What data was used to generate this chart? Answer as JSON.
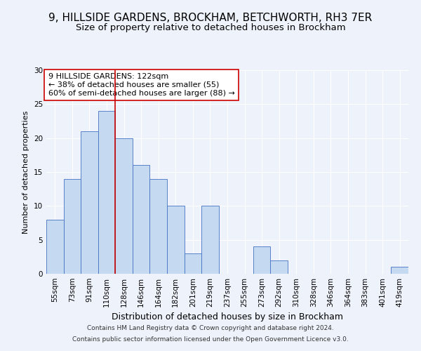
{
  "title1": "9, HILLSIDE GARDENS, BROCKHAM, BETCHWORTH, RH3 7ER",
  "title2": "Size of property relative to detached houses in Brockham",
  "xlabel": "Distribution of detached houses by size in Brockham",
  "ylabel": "Number of detached properties",
  "categories": [
    "55sqm",
    "73sqm",
    "91sqm",
    "110sqm",
    "128sqm",
    "146sqm",
    "164sqm",
    "182sqm",
    "201sqm",
    "219sqm",
    "237sqm",
    "255sqm",
    "273sqm",
    "292sqm",
    "310sqm",
    "328sqm",
    "346sqm",
    "364sqm",
    "383sqm",
    "401sqm",
    "419sqm"
  ],
  "values": [
    8,
    14,
    21,
    24,
    20,
    16,
    14,
    10,
    3,
    10,
    0,
    0,
    4,
    2,
    0,
    0,
    0,
    0,
    0,
    0,
    1
  ],
  "bar_color": "#c5d9f1",
  "bar_edge_color": "#4472c4",
  "vline_x": 3.5,
  "vline_color": "#cc0000",
  "annotation_text": "9 HILLSIDE GARDENS: 122sqm\n← 38% of detached houses are smaller (55)\n60% of semi-detached houses are larger (88) →",
  "annotation_box_color": "#ffffff",
  "annotation_box_edge": "#cc0000",
  "ylim": [
    0,
    30
  ],
  "yticks": [
    0,
    5,
    10,
    15,
    20,
    25,
    30
  ],
  "footer1": "Contains HM Land Registry data © Crown copyright and database right 2024.",
  "footer2": "Contains public sector information licensed under the Open Government Licence v3.0.",
  "bg_color": "#eef2fb",
  "grid_color": "#ffffff",
  "title1_fontsize": 11,
  "title2_fontsize": 9.5,
  "xlabel_fontsize": 9,
  "ylabel_fontsize": 8,
  "tick_fontsize": 7.5,
  "annotation_fontsize": 8,
  "footer_fontsize": 6.5
}
